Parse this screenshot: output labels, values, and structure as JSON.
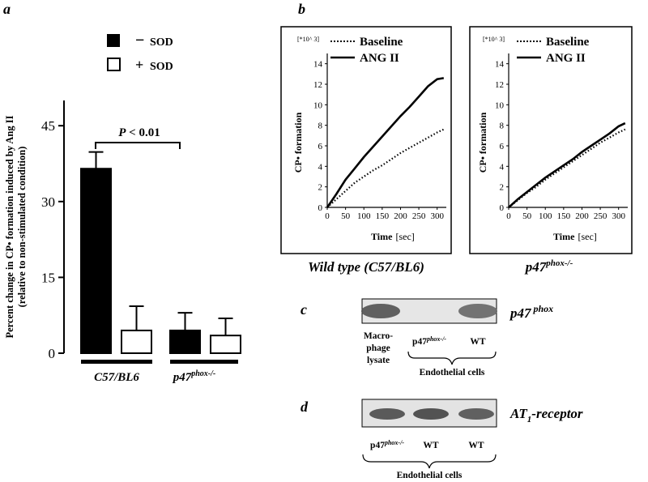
{
  "panels": {
    "a": {
      "letter": "a"
    },
    "b": {
      "letter": "b"
    },
    "c": {
      "letter": "c",
      "protein_label": "p47",
      "protein_sup": "phox",
      "lane_labels": [
        [
          "Macro-",
          "phage",
          "lysate"
        ],
        [
          "p47",
          "phox-/-"
        ],
        [
          "WT"
        ]
      ],
      "group_label": "Endothelial cells",
      "band_intensity": [
        0.85,
        0.0,
        0.7
      ]
    },
    "d": {
      "letter": "d",
      "protein_label": "AT",
      "protein_sub": "1",
      "protein_suffix": "-receptor",
      "lane_labels": [
        [
          "p47",
          "phox-/-"
        ],
        [
          "WT"
        ],
        [
          "WT"
        ]
      ],
      "group_label": "Endothelial cells",
      "band_intensity": [
        0.9,
        0.95,
        0.85
      ]
    }
  },
  "chart_data": [
    {
      "id": "a",
      "type": "bar",
      "ylabel_lines": [
        "Percent change in CP• formation induced by Ang II",
        "(relative to non-stimulated condition)"
      ],
      "yticks": [
        0,
        15,
        30,
        45
      ],
      "ylim": [
        0,
        50
      ],
      "categories": [
        "C57/BL6",
        "p47"
      ],
      "category_sup": [
        "",
        "phox-/-"
      ],
      "series": [
        {
          "name": "- SOD",
          "sign": "−",
          "label": "SOD",
          "fill": "#000000",
          "values": [
            36.5,
            4.5
          ],
          "errors": [
            3.3,
            3.5
          ]
        },
        {
          "name": "+ SOD",
          "sign": "+",
          "label": "SOD",
          "fill": "#ffffff",
          "values": [
            4.5,
            3.5
          ],
          "errors": [
            4.8,
            3.4
          ]
        }
      ],
      "annotation": {
        "text_italic": "P",
        "text_rest": " < 0.01"
      }
    },
    {
      "id": "b1",
      "type": "line",
      "caption": "Wild type (C57/BL6)",
      "scale_label": "[*10^ 3]",
      "ylabel": "CP• formation",
      "xlabel": "Time",
      "xunit": "[sec]",
      "xticks": [
        0,
        50,
        100,
        150,
        200,
        250,
        300
      ],
      "yticks": [
        0,
        2,
        4,
        6,
        8,
        10,
        12,
        14
      ],
      "xlim": [
        0,
        325
      ],
      "ylim": [
        0,
        15
      ],
      "series": [
        {
          "name": "Baseline",
          "style": "dotted",
          "x": [
            0,
            25,
            50,
            75,
            100,
            125,
            150,
            175,
            200,
            225,
            250,
            275,
            300,
            318
          ],
          "y": [
            0,
            0.8,
            1.6,
            2.4,
            3.0,
            3.6,
            4.1,
            4.7,
            5.3,
            5.8,
            6.3,
            6.8,
            7.3,
            7.6
          ]
        },
        {
          "name": "ANG II",
          "style": "solid",
          "x": [
            0,
            25,
            50,
            75,
            100,
            125,
            150,
            175,
            200,
            225,
            250,
            275,
            300,
            318
          ],
          "y": [
            0,
            1.3,
            2.7,
            3.8,
            4.9,
            5.9,
            6.9,
            7.9,
            8.9,
            9.8,
            10.8,
            11.8,
            12.5,
            12.6
          ]
        }
      ]
    },
    {
      "id": "b2",
      "type": "line",
      "caption_base": "p47",
      "caption_sup": "phox-/-",
      "scale_label": "[*10^ 3]",
      "ylabel": "CP• formation",
      "xlabel": "Time",
      "xunit": "[sec]",
      "xticks": [
        0,
        50,
        100,
        150,
        200,
        250,
        300
      ],
      "yticks": [
        0,
        2,
        4,
        6,
        8,
        10,
        12,
        14
      ],
      "xlim": [
        0,
        325
      ],
      "ylim": [
        0,
        15
      ],
      "series": [
        {
          "name": "Baseline",
          "style": "dotted",
          "x": [
            0,
            25,
            50,
            75,
            100,
            125,
            150,
            175,
            200,
            225,
            250,
            275,
            300,
            318
          ],
          "y": [
            0,
            0.7,
            1.4,
            2.0,
            2.7,
            3.3,
            3.9,
            4.5,
            5.1,
            5.7,
            6.3,
            6.8,
            7.3,
            7.6
          ]
        },
        {
          "name": "ANG II",
          "style": "solid",
          "x": [
            0,
            25,
            50,
            75,
            100,
            125,
            150,
            175,
            200,
            225,
            250,
            275,
            300,
            318
          ],
          "y": [
            0,
            0.8,
            1.5,
            2.2,
            2.9,
            3.5,
            4.1,
            4.7,
            5.4,
            6.0,
            6.6,
            7.2,
            7.9,
            8.2
          ]
        }
      ]
    }
  ]
}
